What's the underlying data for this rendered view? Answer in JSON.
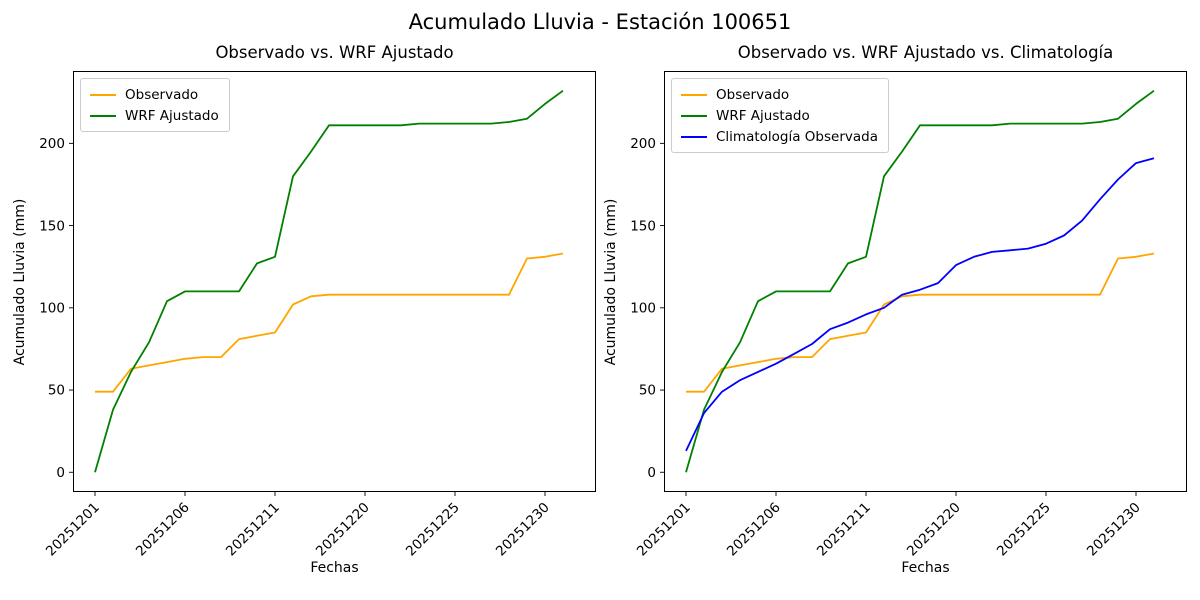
{
  "suptitle": "Acumulado Lluvia - Estación 100651",
  "chart_data": [
    {
      "type": "line",
      "title": "Observado vs. WRF Ajustado",
      "xlabel": "Fechas",
      "ylabel": "Acumulado Lluvia (mm)",
      "x": [
        "20251201",
        "20251202",
        "20251203",
        "20251204",
        "20251205",
        "20251206",
        "20251207",
        "20251208",
        "20251209",
        "20251210",
        "20251211",
        "20251216",
        "20251217",
        "20251218",
        "20251219",
        "20251220",
        "20251221",
        "20251222",
        "20251223",
        "20251224",
        "20251225",
        "20251226",
        "20251227",
        "20251228",
        "20251229",
        "20251230",
        "20251231"
      ],
      "xtick_positions": [
        0,
        5,
        10,
        15,
        20,
        25
      ],
      "xtick_labels": [
        "20251201",
        "20251206",
        "20251211",
        "20251220",
        "20251225",
        "20251230"
      ],
      "yticks": [
        0,
        50,
        100,
        150,
        200
      ],
      "ylim": [
        -12,
        244
      ],
      "grid": false,
      "legend_position": "upper left",
      "series": [
        {
          "name": "Observado",
          "color": "#FFA500",
          "values": [
            49,
            49,
            63,
            65,
            67,
            69,
            70,
            70,
            81,
            83,
            85,
            102,
            107,
            108,
            108,
            108,
            108,
            108,
            108,
            108,
            108,
            108,
            108,
            108,
            130,
            131,
            133
          ]
        },
        {
          "name": "WRF Ajustado",
          "color": "#008000",
          "values": [
            0,
            38,
            61,
            79,
            104,
            110,
            110,
            110,
            110,
            127,
            131,
            180,
            195,
            211,
            211,
            211,
            211,
            211,
            212,
            212,
            212,
            212,
            212,
            213,
            215,
            224,
            232
          ]
        }
      ]
    },
    {
      "type": "line",
      "title": "Observado vs. WRF Ajustado vs. Climatología",
      "xlabel": "Fechas",
      "ylabel": "Acumulado Lluvia (mm)",
      "x": [
        "20251201",
        "20251202",
        "20251203",
        "20251204",
        "20251205",
        "20251206",
        "20251207",
        "20251208",
        "20251209",
        "20251210",
        "20251211",
        "20251216",
        "20251217",
        "20251218",
        "20251219",
        "20251220",
        "20251221",
        "20251222",
        "20251223",
        "20251224",
        "20251225",
        "20251226",
        "20251227",
        "20251228",
        "20251229",
        "20251230",
        "20251231"
      ],
      "xtick_positions": [
        0,
        5,
        10,
        15,
        20,
        25
      ],
      "xtick_labels": [
        "20251201",
        "20251206",
        "20251211",
        "20251220",
        "20251225",
        "20251230"
      ],
      "yticks": [
        0,
        50,
        100,
        150,
        200
      ],
      "ylim": [
        -12,
        244
      ],
      "grid": false,
      "legend_position": "upper left",
      "series": [
        {
          "name": "Observado",
          "color": "#FFA500",
          "values": [
            49,
            49,
            63,
            65,
            67,
            69,
            70,
            70,
            81,
            83,
            85,
            102,
            107,
            108,
            108,
            108,
            108,
            108,
            108,
            108,
            108,
            108,
            108,
            108,
            130,
            131,
            133
          ]
        },
        {
          "name": "WRF Ajustado",
          "color": "#008000",
          "values": [
            0,
            38,
            61,
            79,
            104,
            110,
            110,
            110,
            110,
            127,
            131,
            180,
            195,
            211,
            211,
            211,
            211,
            211,
            212,
            212,
            212,
            212,
            212,
            213,
            215,
            224,
            232
          ]
        },
        {
          "name": "Climatología Observada",
          "color": "#0000FF",
          "values": [
            13,
            36,
            49,
            56,
            61,
            66,
            72,
            78,
            87,
            91,
            96,
            100,
            108,
            111,
            115,
            126,
            131,
            134,
            135,
            136,
            139,
            144,
            153,
            166,
            178,
            188,
            191
          ]
        }
      ]
    }
  ]
}
